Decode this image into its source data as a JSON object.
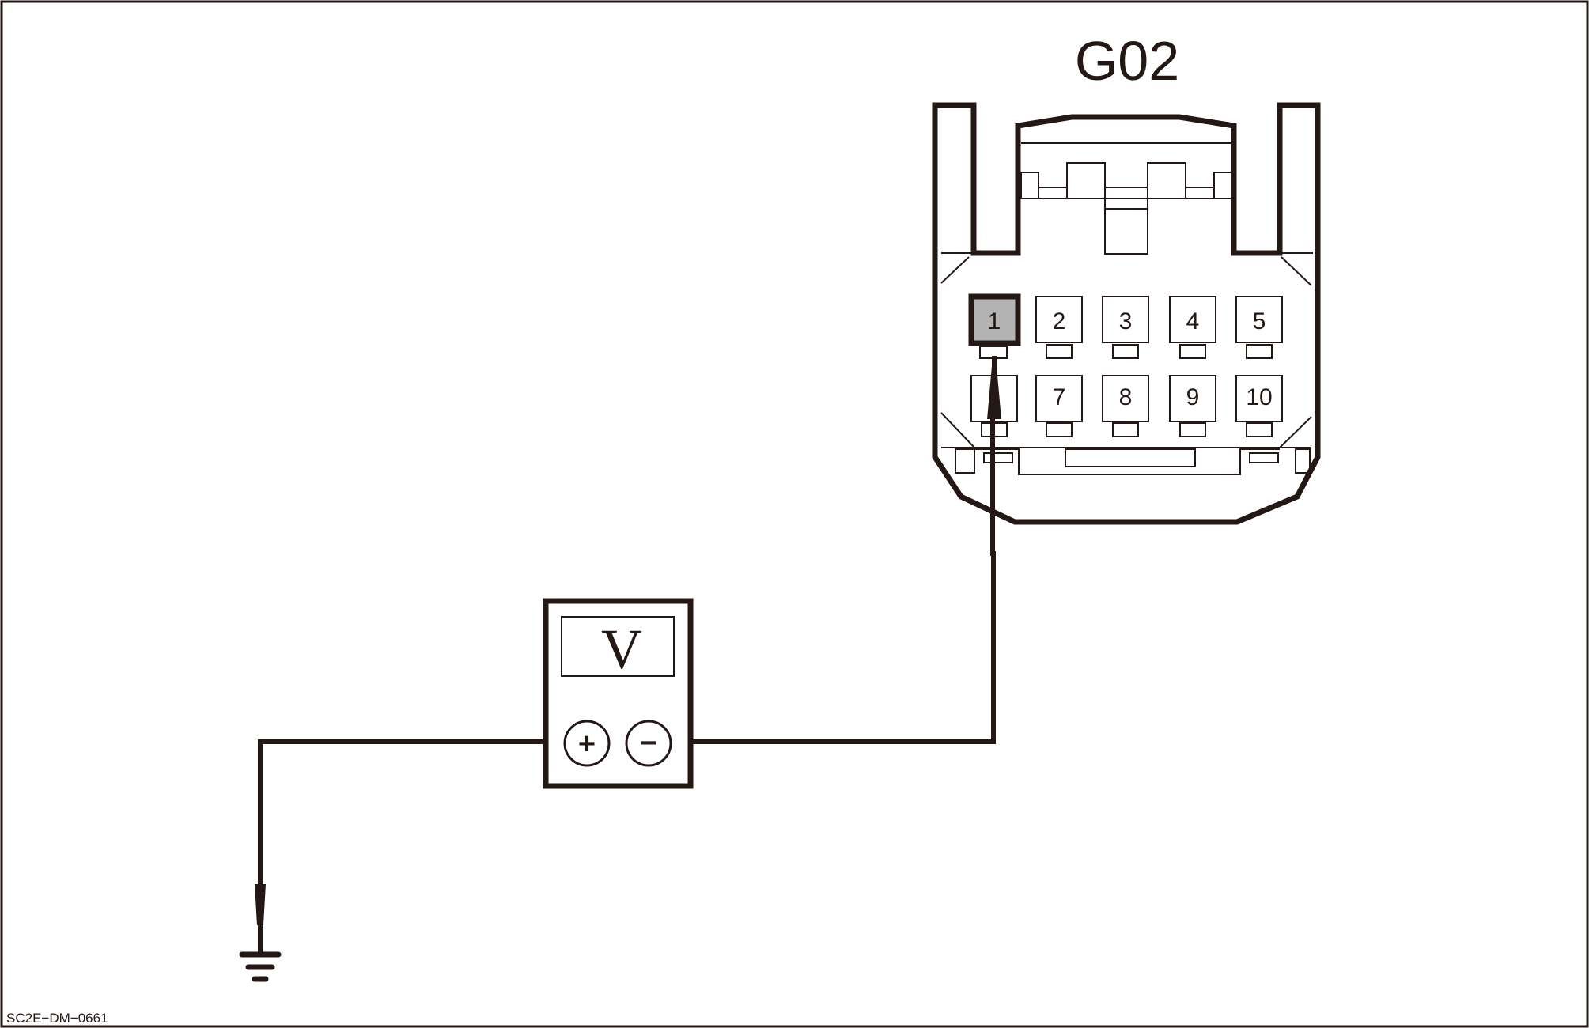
{
  "connector": {
    "name": "G02",
    "pins": [
      "1",
      "2",
      "3",
      "4",
      "5",
      "",
      "7",
      "8",
      "9",
      "10"
    ],
    "highlighted_pin": "1"
  },
  "meter": {
    "label": "V",
    "positive": "+",
    "negative": "−"
  },
  "code": "SC2E−DM−0661",
  "colors": {
    "line": "#231815",
    "pin_highlight": "#b3b3b3",
    "background": "#ffffff"
  }
}
